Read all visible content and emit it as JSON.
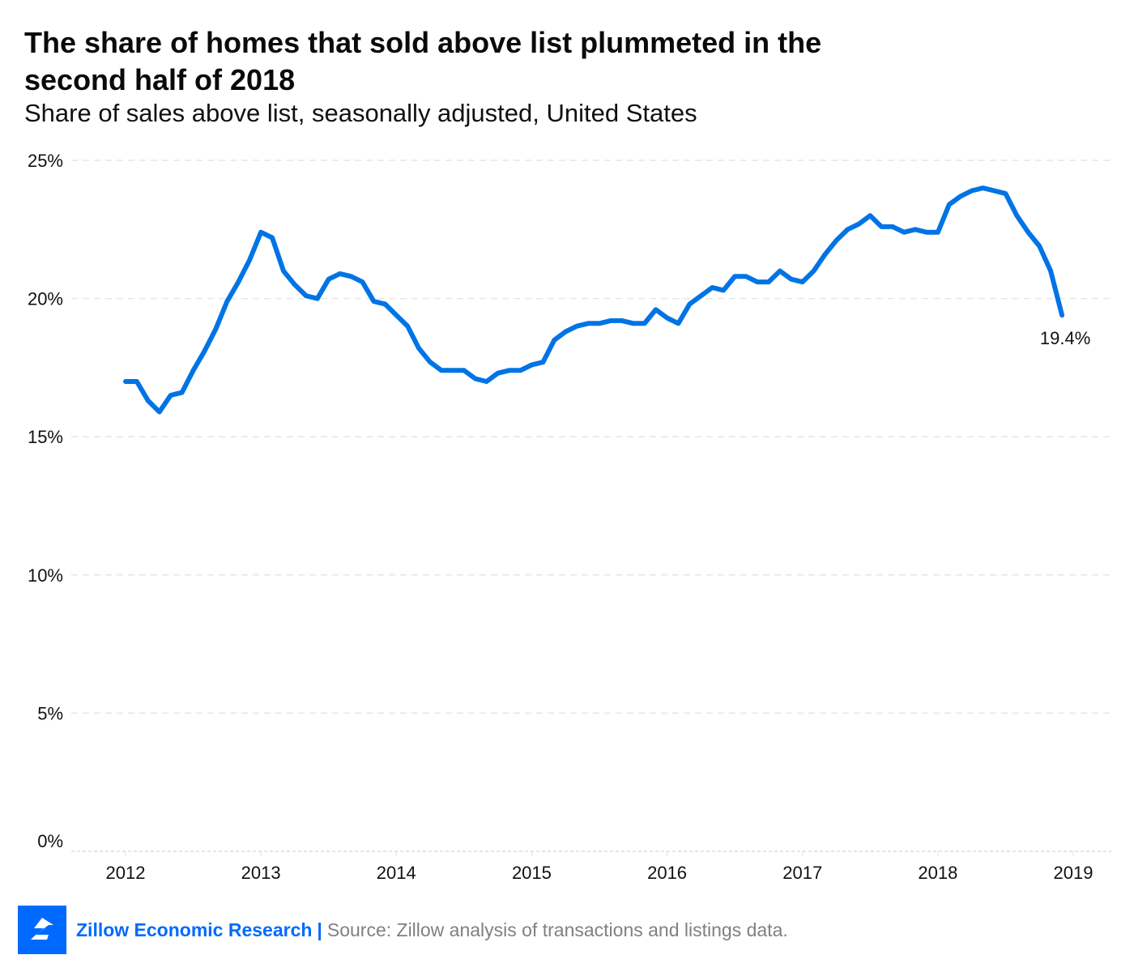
{
  "title": "The share of homes that sold above list plummeted in the second half of 2018",
  "subtitle": "Share of sales above list, seasonally adjusted, United States",
  "footer": {
    "logo_icon": "zillow-logo-icon",
    "brand": "Zillow Economic Research",
    "separator": "|",
    "source": "Source: Zillow analysis of transactions and listings data."
  },
  "colors": {
    "line": "#0074E4",
    "brand": "#006AFF",
    "grid": "#e6e6e6",
    "source_text": "#808080"
  },
  "chart_data": {
    "type": "line",
    "title": "The share of homes that sold above list plummeted in the second half of 2018",
    "subtitle": "Share of sales above list, seasonally adjusted, United States",
    "xlabel": "",
    "ylabel": "",
    "x_start": "2012-01",
    "x_frequency": "monthly",
    "xlim": [
      2012,
      2019
    ],
    "x_ticks": [
      "2012",
      "2013",
      "2014",
      "2015",
      "2016",
      "2017",
      "2018",
      "2019"
    ],
    "ylim": [
      0,
      25
    ],
    "y_ticks": [
      "0%",
      "5%",
      "10%",
      "15%",
      "20%",
      "25%"
    ],
    "y_tick_values": [
      0,
      5,
      10,
      15,
      20,
      25
    ],
    "grid": "horizontal dashed",
    "legend": "none",
    "series": [
      {
        "name": "Share of sales above list (%)",
        "values": [
          17.0,
          17.0,
          16.3,
          15.9,
          16.5,
          16.6,
          17.4,
          18.1,
          18.9,
          19.9,
          20.6,
          21.4,
          22.4,
          22.2,
          21.0,
          20.5,
          20.1,
          20.0,
          20.7,
          20.9,
          20.8,
          20.6,
          19.9,
          19.8,
          19.4,
          19.0,
          18.2,
          17.7,
          17.4,
          17.4,
          17.4,
          17.1,
          17.0,
          17.3,
          17.4,
          17.4,
          17.6,
          17.7,
          18.5,
          18.8,
          19.0,
          19.1,
          19.1,
          19.2,
          19.2,
          19.1,
          19.1,
          19.6,
          19.3,
          19.1,
          19.8,
          20.1,
          20.4,
          20.3,
          20.8,
          20.8,
          20.6,
          20.6,
          21.0,
          20.7,
          20.6,
          21.0,
          21.6,
          22.1,
          22.5,
          22.7,
          23.0,
          22.6,
          22.6,
          22.4,
          22.5,
          22.4,
          22.4,
          23.4,
          23.7,
          23.9,
          24.0,
          23.9,
          23.8,
          23.0,
          22.4,
          21.9,
          21.0,
          19.4
        ]
      }
    ],
    "annotations": [
      {
        "text": "19.4%",
        "target": "last point"
      }
    ]
  }
}
